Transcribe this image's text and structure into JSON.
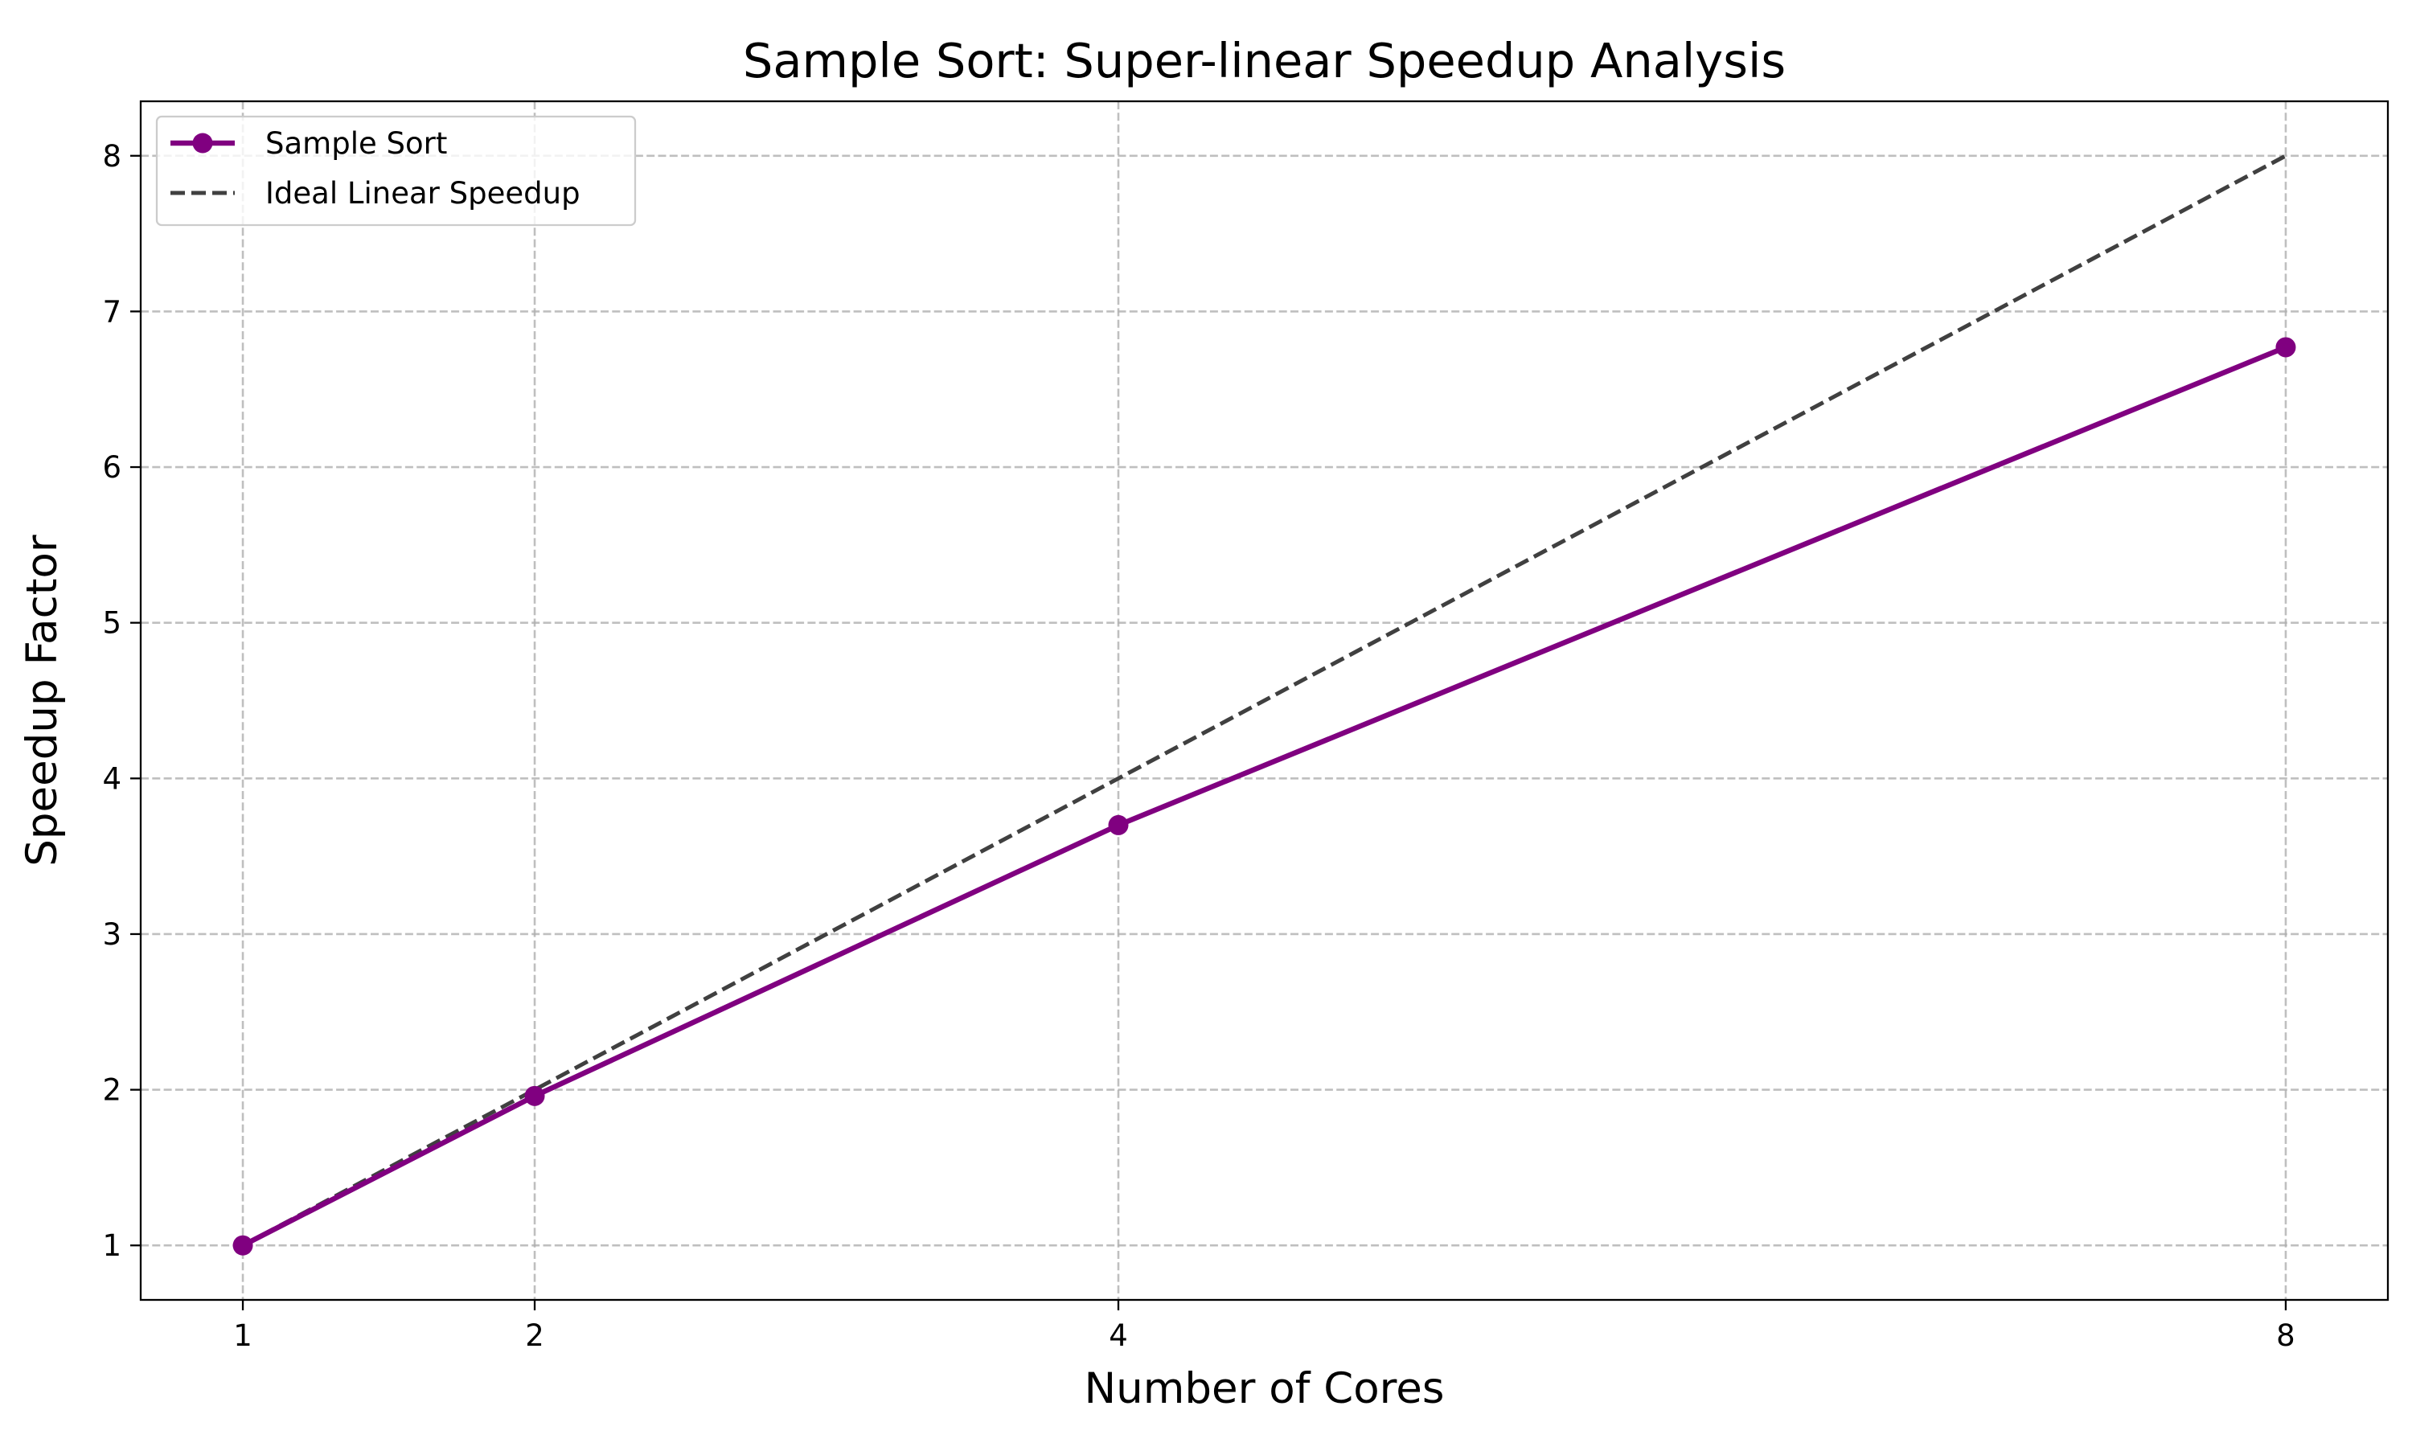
{
  "colors": {
    "sample_sort": "#800080",
    "ideal": "#404040",
    "grid": "#b0b0b0",
    "background": "#ffffff"
  },
  "chart_data": {
    "type": "line",
    "title": "Sample Sort: Super-linear Speedup Analysis",
    "xlabel": "Number of Cores",
    "ylabel": "Speedup Factor",
    "x": [
      1,
      2,
      4,
      8
    ],
    "x_ticks": [
      1,
      2,
      4,
      8
    ],
    "y_ticks": [
      1,
      2,
      3,
      4,
      5,
      6,
      7,
      8
    ],
    "xlim": [
      0.65,
      8.35
    ],
    "ylim": [
      0.65,
      8.35
    ],
    "grid": true,
    "legend_position": "top-left",
    "series": [
      {
        "name": "Sample Sort",
        "values": [
          1.0,
          1.96,
          3.7,
          6.77
        ],
        "style": "solid",
        "marker": "circle",
        "color": "#800080"
      },
      {
        "name": "Ideal Linear Speedup",
        "values": [
          1,
          2,
          4,
          8
        ],
        "style": "dashed",
        "marker": "none",
        "color": "#404040"
      }
    ]
  }
}
